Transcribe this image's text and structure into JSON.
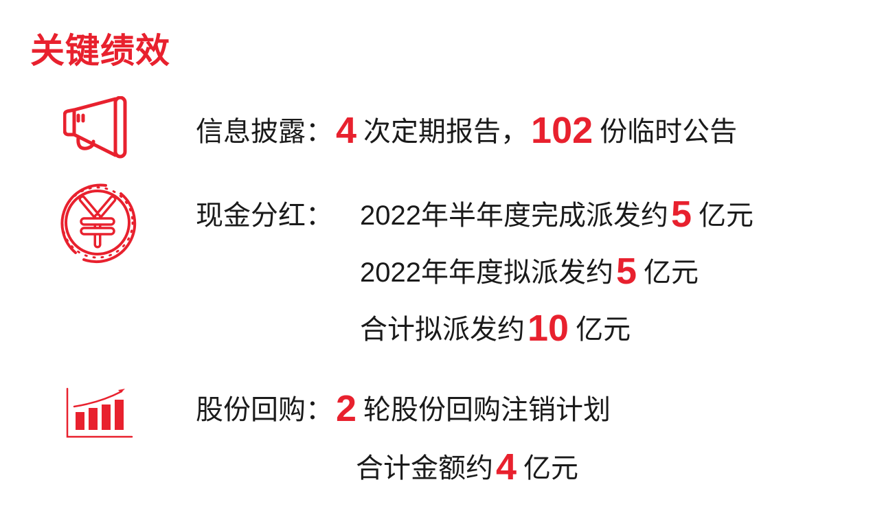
{
  "title": "关键绩效",
  "accent_color": "#e8212e",
  "sections": [
    {
      "icon": "megaphone-icon",
      "label": "信息披露：",
      "lines": [
        {
          "parts": [
            {
              "num": "4"
            },
            {
              "text": "次定期报告，"
            },
            {
              "num": "102"
            },
            {
              "text": "份临时公告"
            }
          ]
        }
      ]
    },
    {
      "icon": "yen-coin-icon",
      "label": "现金分红：",
      "lines": [
        {
          "parts": [
            {
              "text": "2022年半年度完成派发约"
            },
            {
              "num": "5"
            },
            {
              "text": "亿元"
            }
          ]
        },
        {
          "parts": [
            {
              "text": "2022年年度拟派发约"
            },
            {
              "num": "5"
            },
            {
              "text": "亿元"
            }
          ]
        },
        {
          "parts": [
            {
              "text": "合计拟派发约"
            },
            {
              "num": "10"
            },
            {
              "text": "亿元"
            }
          ]
        }
      ]
    },
    {
      "icon": "bar-chart-growth-icon",
      "label": "股份回购：",
      "lines": [
        {
          "parts": [
            {
              "num": "2"
            },
            {
              "text": "轮股份回购注销计划"
            }
          ]
        },
        {
          "parts": [
            {
              "text": "合计金额约"
            },
            {
              "num": "4"
            },
            {
              "text": "亿元"
            }
          ]
        }
      ]
    }
  ]
}
